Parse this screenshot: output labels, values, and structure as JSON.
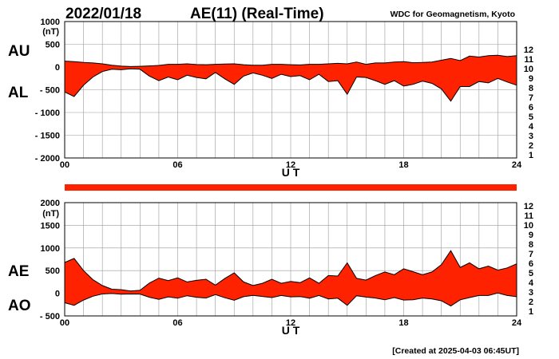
{
  "header": {
    "date": "2022/01/18",
    "title": "AE(11) (Real-Time)",
    "source": "WDC for Geomagnetism, Kyoto"
  },
  "footer": {
    "created": "[Created at 2025-04-03 06:45UT]"
  },
  "colors": {
    "fill": "#ff2200",
    "outline": "#000000",
    "grid": "#9a9a9a"
  },
  "station_legend": {
    "labels": [
      "12",
      "11",
      "10",
      "9",
      "8",
      "7",
      "6",
      "5",
      "4",
      "3",
      "2",
      "1"
    ],
    "colors": [
      "#ff1493",
      "#ee0000",
      "#ff9900",
      "#d9e600",
      "#33ee33",
      "#00cccc",
      "#2266ff",
      "#2200cc",
      "#cc00cc",
      "#222222",
      "#777777",
      "#bbbbbb"
    ]
  },
  "availability_bar": {
    "coverage_hours": [
      0,
      24
    ]
  },
  "chart_data": [
    {
      "type": "area",
      "panel": "upper",
      "unit": "(nT)",
      "xlabel": "U T",
      "xlim": [
        0,
        24
      ],
      "xticks": [
        0,
        6,
        12,
        18,
        24
      ],
      "xtick_labels": [
        "00",
        "06",
        "12",
        "18",
        "24"
      ],
      "ylim": [
        -2000,
        1000
      ],
      "yticks": [
        1000,
        500,
        0,
        -500,
        -1000,
        -1500,
        -2000
      ],
      "ytick_labels": [
        "1000",
        "500",
        "0",
        "- 500",
        "- 1000",
        "- 1500",
        "- 2000"
      ],
      "grid": true,
      "series": [
        {
          "name": "AU",
          "x": [
            0,
            0.5,
            1,
            1.5,
            2,
            2.5,
            3,
            3.5,
            4,
            4.5,
            5,
            5.5,
            6,
            6.5,
            7,
            7.5,
            8,
            8.5,
            9,
            9.5,
            10,
            10.5,
            11,
            11.5,
            12,
            12.5,
            13,
            13.5,
            14,
            14.5,
            15,
            15.5,
            16,
            16.5,
            17,
            17.5,
            18,
            18.5,
            19,
            19.5,
            20,
            20.5,
            21,
            21.5,
            22,
            22.5,
            23,
            23.5,
            24
          ],
          "y": [
            130,
            120,
            100,
            90,
            70,
            40,
            20,
            10,
            15,
            25,
            35,
            60,
            60,
            70,
            55,
            50,
            60,
            65,
            70,
            50,
            40,
            40,
            60,
            60,
            50,
            45,
            60,
            60,
            70,
            80,
            70,
            110,
            60,
            90,
            90,
            110,
            120,
            95,
            100,
            110,
            150,
            190,
            140,
            240,
            220,
            250,
            260,
            230,
            250
          ]
        },
        {
          "name": "AL",
          "x": [
            0,
            0.5,
            1,
            1.5,
            2,
            2.5,
            3,
            3.5,
            4,
            4.5,
            5,
            5.5,
            6,
            6.5,
            7,
            7.5,
            8,
            8.5,
            9,
            9.5,
            10,
            10.5,
            11,
            11.5,
            12,
            12.5,
            13,
            13.5,
            14,
            14.5,
            15,
            15.5,
            16,
            16.5,
            17,
            17.5,
            18,
            18.5,
            19,
            19.5,
            20,
            20.5,
            21,
            21.5,
            22,
            22.5,
            23,
            23.5,
            24
          ],
          "y": [
            -550,
            -650,
            -400,
            -220,
            -100,
            -50,
            -60,
            -40,
            -50,
            -200,
            -300,
            -220,
            -280,
            -180,
            -230,
            -260,
            -120,
            -260,
            -380,
            -200,
            -130,
            -180,
            -250,
            -160,
            -210,
            -190,
            -280,
            -160,
            -320,
            -300,
            -600,
            -220,
            -230,
            -300,
            -380,
            -300,
            -420,
            -380,
            -310,
            -360,
            -480,
            -750,
            -430,
            -430,
            -320,
            -350,
            -250,
            -330,
            -400
          ]
        }
      ]
    },
    {
      "type": "area",
      "panel": "lower",
      "unit": "(nT)",
      "xlabel": "U T",
      "xlim": [
        0,
        24
      ],
      "xticks": [
        0,
        6,
        12,
        18,
        24
      ],
      "xtick_labels": [
        "00",
        "06",
        "12",
        "18",
        "24"
      ],
      "ylim": [
        -500,
        2000
      ],
      "yticks": [
        2000,
        1500,
        1000,
        500,
        0,
        -500
      ],
      "ytick_labels": [
        "2000",
        "1500",
        "1000",
        "500",
        "0",
        "- 500"
      ],
      "grid": true,
      "series": [
        {
          "name": "AE",
          "x": [
            0,
            0.5,
            1,
            1.5,
            2,
            2.5,
            3,
            3.5,
            4,
            4.5,
            5,
            5.5,
            6,
            6.5,
            7,
            7.5,
            8,
            8.5,
            9,
            9.5,
            10,
            10.5,
            11,
            11.5,
            12,
            12.5,
            13,
            13.5,
            14,
            14.5,
            15,
            15.5,
            16,
            16.5,
            17,
            17.5,
            18,
            18.5,
            19,
            19.5,
            20,
            20.5,
            21,
            21.5,
            22,
            22.5,
            23,
            23.5,
            24
          ],
          "y": [
            680,
            770,
            500,
            300,
            170,
            90,
            80,
            50,
            65,
            225,
            335,
            280,
            340,
            250,
            285,
            310,
            180,
            325,
            450,
            250,
            170,
            220,
            310,
            220,
            260,
            235,
            340,
            220,
            390,
            380,
            670,
            330,
            290,
            390,
            470,
            410,
            540,
            475,
            410,
            470,
            630,
            940,
            570,
            670,
            540,
            600,
            510,
            560,
            650
          ]
        },
        {
          "name": "AO",
          "x": [
            0,
            0.5,
            1,
            1.5,
            2,
            2.5,
            3,
            3.5,
            4,
            4.5,
            5,
            5.5,
            6,
            6.5,
            7,
            7.5,
            8,
            8.5,
            9,
            9.5,
            10,
            10.5,
            11,
            11.5,
            12,
            12.5,
            13,
            13.5,
            14,
            14.5,
            15,
            15.5,
            16,
            16.5,
            17,
            17.5,
            18,
            18.5,
            19,
            19.5,
            20,
            20.5,
            21,
            21.5,
            22,
            22.5,
            23,
            23.5,
            24
          ],
          "y": [
            -210,
            -265,
            -150,
            -65,
            -15,
            -5,
            -20,
            -15,
            -18,
            -88,
            -133,
            -80,
            -110,
            -55,
            -88,
            -105,
            -30,
            -98,
            -155,
            -75,
            -45,
            -70,
            -95,
            -50,
            -80,
            -73,
            -110,
            -50,
            -125,
            -110,
            -265,
            -55,
            -85,
            -105,
            -145,
            -95,
            -150,
            -143,
            -105,
            -125,
            -165,
            -280,
            -145,
            -95,
            -50,
            -50,
            5,
            -50,
            -75
          ]
        }
      ]
    }
  ]
}
